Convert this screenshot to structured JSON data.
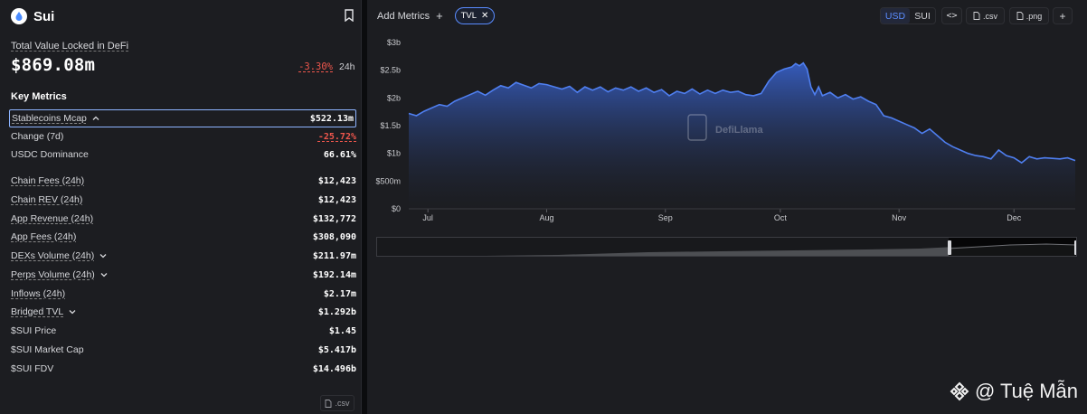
{
  "chain": {
    "name": "Sui",
    "logo_icon": "sui-droplet-icon"
  },
  "tvl": {
    "label": "Total Value Locked in DeFi",
    "value": "$869.08m",
    "change": "-3.30%",
    "period": "24h"
  },
  "key_metrics": {
    "title": "Key Metrics",
    "rows": [
      {
        "label": "Stablecoins Mcap",
        "value": "$522.13m",
        "underline": true,
        "chevron": "up",
        "active": true
      },
      {
        "label": "Change (7d)",
        "value": "-25.72%",
        "negative": true
      },
      {
        "label": "USDC Dominance",
        "value": "66.61%"
      },
      {
        "label": "Chain Fees (24h)",
        "value": "$12,423",
        "underline": true
      },
      {
        "label": "Chain REV (24h)",
        "value": "$12,423",
        "underline": true
      },
      {
        "label": "App Revenue (24h)",
        "value": "$132,772",
        "underline": true
      },
      {
        "label": "App Fees (24h)",
        "value": "$308,090",
        "underline": true
      },
      {
        "label": "DEXs Volume (24h)",
        "value": "$211.97m",
        "underline": true,
        "chevron": "down"
      },
      {
        "label": "Perps Volume (24h)",
        "value": "$192.14m",
        "underline": true,
        "chevron": "down"
      },
      {
        "label": "Inflows (24h)",
        "value": "$2.17m",
        "underline": true
      },
      {
        "label": "Bridged TVL",
        "value": "$1.292b",
        "underline": true,
        "chevron": "down"
      },
      {
        "label": "$SUI Price",
        "value": "$1.45"
      },
      {
        "label": "$SUI Market Cap",
        "value": "$5.417b"
      },
      {
        "label": "$SUI FDV",
        "value": "$14.496b"
      }
    ],
    "csv_label": ".csv"
  },
  "toolbar": {
    "add_metrics": "Add Metrics",
    "chip": "TVL",
    "currency_options": [
      "USD",
      "SUI"
    ],
    "currency_selected": "USD",
    "embed_label": "<>",
    "csv_label": ".csv",
    "png_label": ".png",
    "plus_label": "+"
  },
  "chart_data": {
    "type": "area",
    "y_ticks": [
      "$3b",
      "$2.5b",
      "$2b",
      "$1.5b",
      "$1b",
      "$500m",
      "$0"
    ],
    "ylim": [
      0,
      3
    ],
    "y_unit": "billions USD",
    "x_ticks": [
      "Jul",
      "Aug",
      "Sep",
      "Oct",
      "Nov",
      "Dec"
    ],
    "x_tick_days": [
      5,
      36,
      67,
      97,
      128,
      158
    ],
    "xlim": [
      0,
      174
    ],
    "series": [
      {
        "values": [
          [
            0,
            1.72
          ],
          [
            2,
            1.68
          ],
          [
            4,
            1.76
          ],
          [
            6,
            1.82
          ],
          [
            8,
            1.88
          ],
          [
            10,
            1.85
          ],
          [
            12,
            1.94
          ],
          [
            14,
            2.0
          ],
          [
            16,
            2.06
          ],
          [
            18,
            2.12
          ],
          [
            20,
            2.05
          ],
          [
            22,
            2.14
          ],
          [
            24,
            2.22
          ],
          [
            26,
            2.18
          ],
          [
            28,
            2.28
          ],
          [
            30,
            2.23
          ],
          [
            32,
            2.18
          ],
          [
            34,
            2.26
          ],
          [
            36,
            2.24
          ],
          [
            38,
            2.2
          ],
          [
            40,
            2.16
          ],
          [
            42,
            2.21
          ],
          [
            44,
            2.1
          ],
          [
            46,
            2.2
          ],
          [
            48,
            2.14
          ],
          [
            50,
            2.2
          ],
          [
            52,
            2.11
          ],
          [
            54,
            2.18
          ],
          [
            56,
            2.14
          ],
          [
            58,
            2.2
          ],
          [
            60,
            2.12
          ],
          [
            62,
            2.18
          ],
          [
            64,
            2.1
          ],
          [
            66,
            2.15
          ],
          [
            68,
            2.04
          ],
          [
            70,
            2.12
          ],
          [
            72,
            2.08
          ],
          [
            74,
            2.16
          ],
          [
            76,
            2.07
          ],
          [
            78,
            2.14
          ],
          [
            80,
            2.08
          ],
          [
            82,
            2.14
          ],
          [
            84,
            2.1
          ],
          [
            86,
            2.12
          ],
          [
            88,
            2.06
          ],
          [
            90,
            2.04
          ],
          [
            92,
            2.08
          ],
          [
            94,
            2.3
          ],
          [
            96,
            2.46
          ],
          [
            98,
            2.52
          ],
          [
            100,
            2.56
          ],
          [
            101,
            2.62
          ],
          [
            102,
            2.58
          ],
          [
            103,
            2.63
          ],
          [
            104,
            2.52
          ],
          [
            105,
            2.2
          ],
          [
            106,
            2.06
          ],
          [
            107,
            2.2
          ],
          [
            108,
            2.04
          ],
          [
            110,
            2.1
          ],
          [
            112,
            2.0
          ],
          [
            114,
            2.06
          ],
          [
            116,
            1.98
          ],
          [
            118,
            2.02
          ],
          [
            120,
            1.94
          ],
          [
            122,
            1.88
          ],
          [
            124,
            1.68
          ],
          [
            126,
            1.64
          ],
          [
            128,
            1.58
          ],
          [
            130,
            1.52
          ],
          [
            132,
            1.46
          ],
          [
            134,
            1.36
          ],
          [
            136,
            1.44
          ],
          [
            138,
            1.32
          ],
          [
            140,
            1.2
          ],
          [
            142,
            1.12
          ],
          [
            144,
            1.06
          ],
          [
            146,
            1.0
          ],
          [
            148,
            0.96
          ],
          [
            150,
            0.94
          ],
          [
            152,
            0.9
          ],
          [
            154,
            1.06
          ],
          [
            156,
            0.96
          ],
          [
            158,
            0.92
          ],
          [
            160,
            0.83
          ],
          [
            162,
            0.94
          ],
          [
            164,
            0.9
          ],
          [
            166,
            0.92
          ],
          [
            168,
            0.91
          ],
          [
            170,
            0.9
          ],
          [
            172,
            0.92
          ],
          [
            174,
            0.87
          ]
        ]
      }
    ],
    "watermark": "DefiLlama",
    "grid": false,
    "legend": "none"
  },
  "watermark_text": "@ Tuệ Mẫn"
}
